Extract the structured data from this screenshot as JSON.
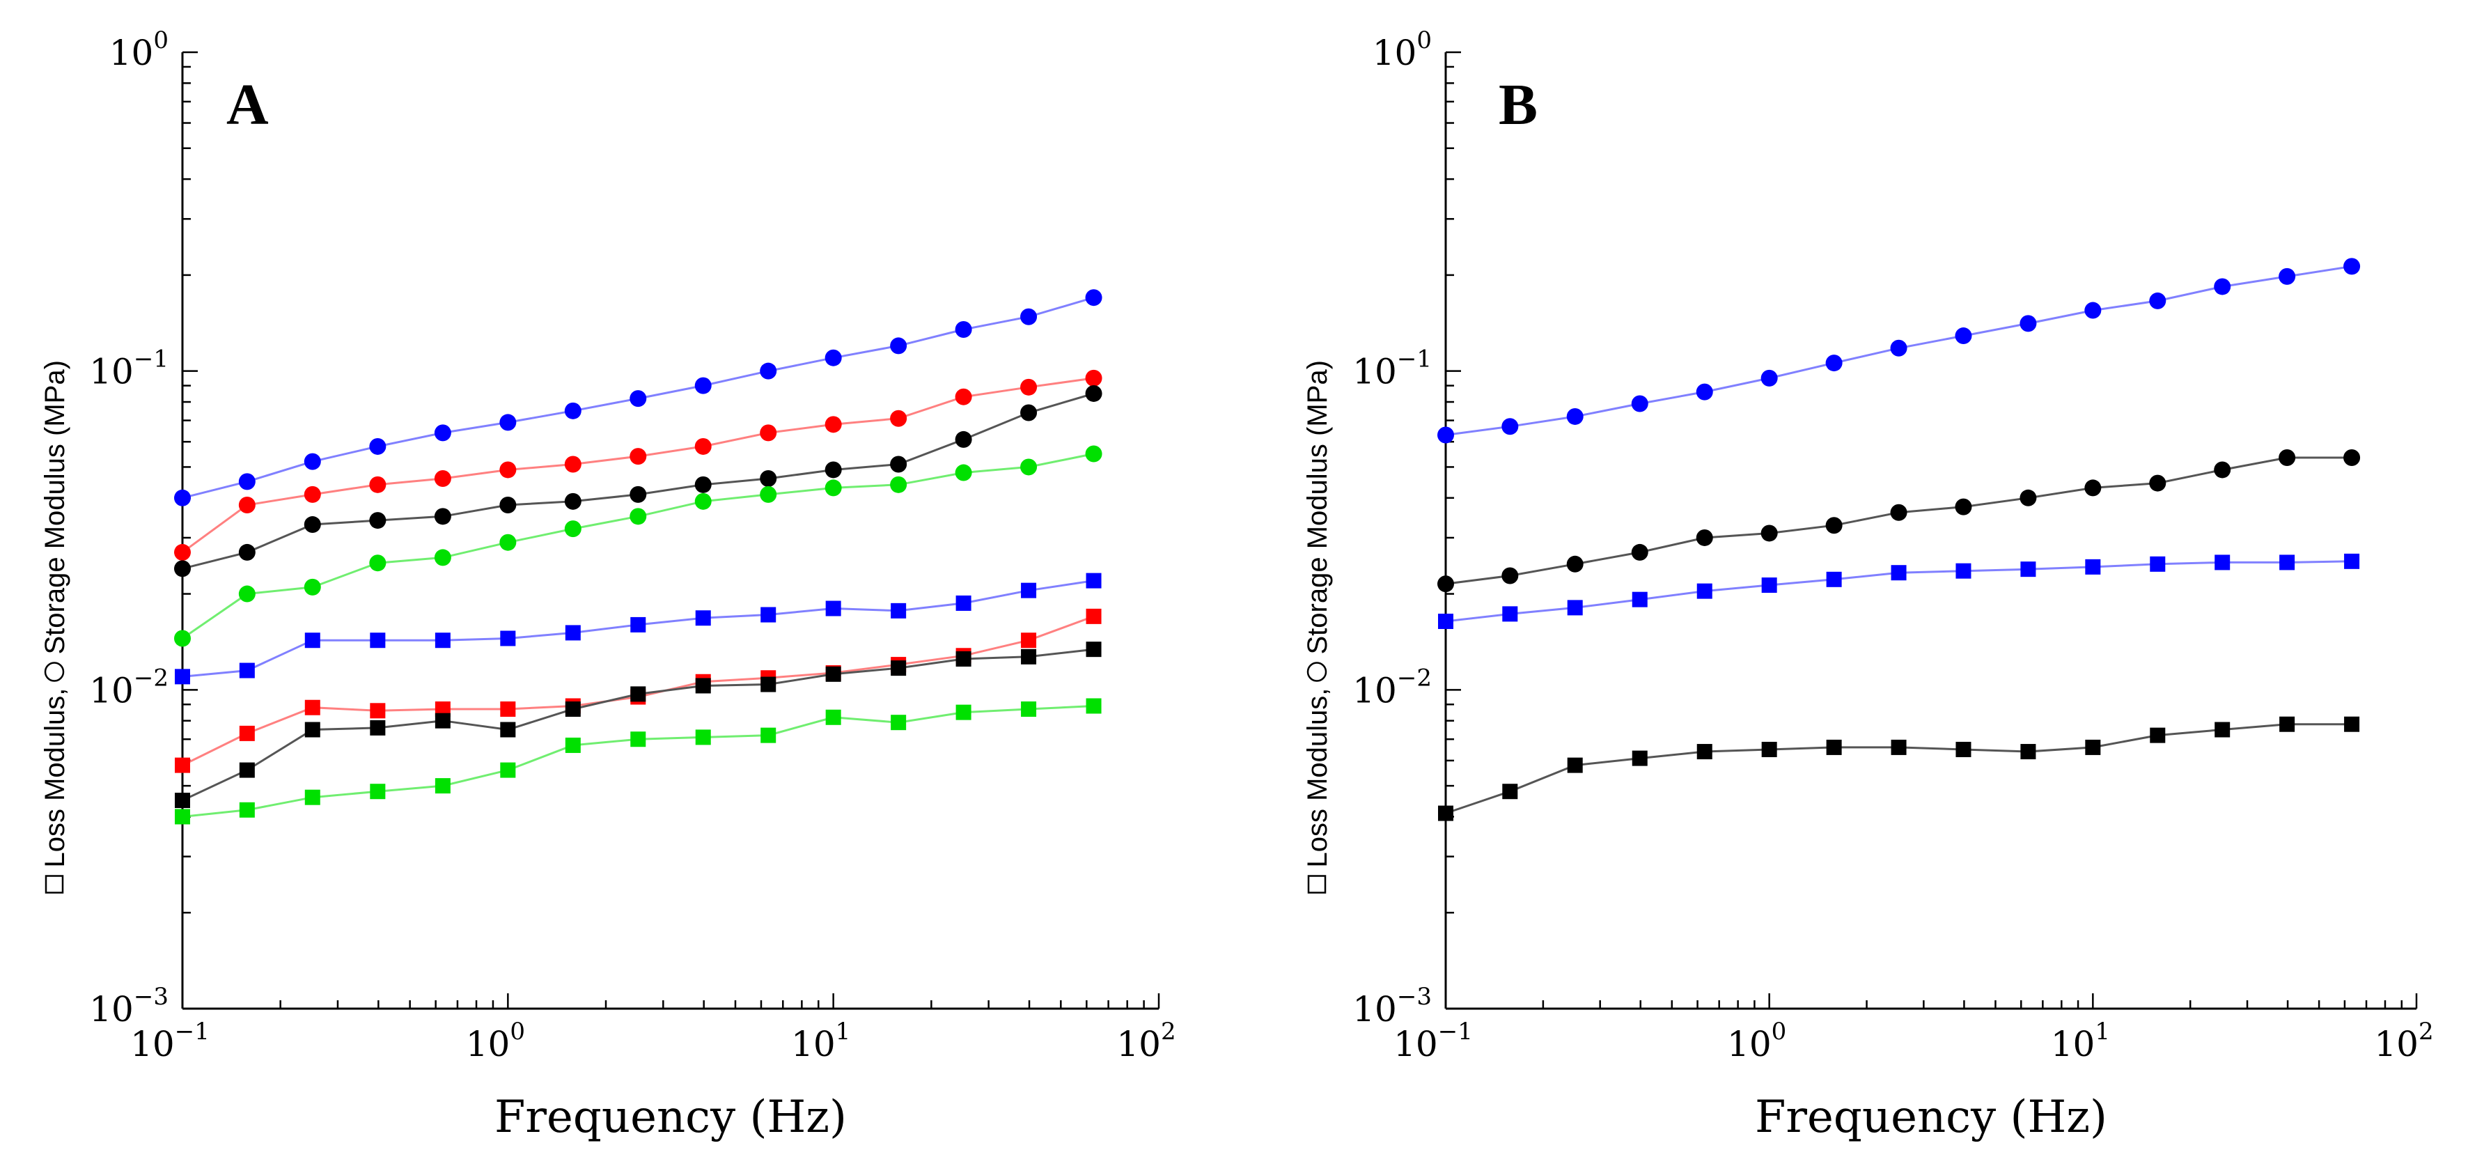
{
  "chart_data": [
    {
      "type": "line",
      "panel": "A",
      "xscale": "log",
      "yscale": "log",
      "xlim": [
        0.1,
        100
      ],
      "ylim": [
        0.001,
        1
      ],
      "xlabel": "Frequency (Hz)",
      "ylabel": "Loss Modulus, Storage Modulus (MPa)",
      "ylabel_loss_part": "Loss Modulus,",
      "ylabel_storage_part": "Storage Modulus (MPa)",
      "xticks": [
        {
          "base": "10",
          "exp": "−1"
        },
        {
          "base": "10",
          "exp": "0"
        },
        {
          "base": "10",
          "exp": "1"
        },
        {
          "base": "10",
          "exp": "2"
        }
      ],
      "yticks": [
        {
          "base": "10",
          "exp": "−3"
        },
        {
          "base": "10",
          "exp": "−2"
        },
        {
          "base": "10",
          "exp": "−1"
        },
        {
          "base": "10",
          "exp": "0"
        }
      ],
      "x": [
        0.1,
        0.158,
        0.251,
        0.398,
        0.631,
        1.0,
        1.585,
        2.512,
        3.981,
        6.31,
        10.0,
        15.85,
        25.12,
        39.81,
        63.1
      ],
      "series": [
        {
          "name": "blue storage",
          "marker": "circle",
          "color": "#0000ff",
          "line_color": "#8080ff",
          "values": [
            0.04,
            0.045,
            0.052,
            0.058,
            0.064,
            0.069,
            0.075,
            0.082,
            0.09,
            0.1,
            0.11,
            0.12,
            0.135,
            0.148,
            0.17
          ]
        },
        {
          "name": "red storage",
          "marker": "circle",
          "color": "#ff0000",
          "line_color": "#ff8080",
          "values": [
            0.027,
            0.038,
            0.041,
            0.044,
            0.046,
            0.049,
            0.051,
            0.054,
            0.058,
            0.064,
            0.068,
            0.071,
            0.083,
            0.089,
            0.095
          ]
        },
        {
          "name": "black storage",
          "marker": "circle",
          "color": "#000000",
          "line_color": "#555555",
          "values": [
            0.024,
            0.027,
            0.033,
            0.034,
            0.035,
            0.038,
            0.039,
            0.041,
            0.044,
            0.046,
            0.049,
            0.051,
            0.061,
            0.074,
            0.085
          ]
        },
        {
          "name": "green storage",
          "marker": "circle",
          "color": "#00e000",
          "line_color": "#70ee70",
          "values": [
            0.0145,
            0.02,
            0.021,
            0.025,
            0.026,
            0.029,
            0.032,
            0.035,
            0.039,
            0.041,
            0.043,
            0.044,
            0.048,
            0.05,
            0.055
          ]
        },
        {
          "name": "blue loss",
          "marker": "square",
          "color": "#0000ff",
          "line_color": "#8080ff",
          "values": [
            0.011,
            0.0115,
            0.0143,
            0.0143,
            0.0143,
            0.0145,
            0.0151,
            0.016,
            0.0168,
            0.0172,
            0.018,
            0.0177,
            0.0187,
            0.0205,
            0.022
          ]
        },
        {
          "name": "red loss",
          "marker": "square",
          "color": "#ff0000",
          "line_color": "#ff8080",
          "values": [
            0.0058,
            0.0073,
            0.0088,
            0.0086,
            0.0087,
            0.0087,
            0.0089,
            0.0095,
            0.0106,
            0.0109,
            0.0113,
            0.012,
            0.0128,
            0.0143,
            0.017
          ]
        },
        {
          "name": "black loss",
          "marker": "square",
          "color": "#000000",
          "line_color": "#555555",
          "values": [
            0.0045,
            0.0056,
            0.0075,
            0.0076,
            0.008,
            0.0075,
            0.0087,
            0.0097,
            0.0103,
            0.0104,
            0.0112,
            0.0117,
            0.0125,
            0.0127,
            0.0134
          ]
        },
        {
          "name": "green loss",
          "marker": "square",
          "color": "#00e000",
          "line_color": "#70ee70",
          "values": [
            0.004,
            0.0042,
            0.0046,
            0.0048,
            0.005,
            0.0056,
            0.0067,
            0.007,
            0.0071,
            0.0072,
            0.0082,
            0.0079,
            0.0085,
            0.0087,
            0.0089
          ]
        }
      ]
    },
    {
      "type": "line",
      "panel": "B",
      "xscale": "log",
      "yscale": "log",
      "xlim": [
        0.1,
        100
      ],
      "ylim": [
        0.001,
        1
      ],
      "xlabel": "Frequency (Hz)",
      "ylabel": "Loss Modulus, Storage Modulus (MPa)",
      "ylabel_loss_part": "Loss Modulus,",
      "ylabel_storage_part": "Storage Modulus (MPa)",
      "xticks": [
        {
          "base": "10",
          "exp": "−1"
        },
        {
          "base": "10",
          "exp": "0"
        },
        {
          "base": "10",
          "exp": "1"
        },
        {
          "base": "10",
          "exp": "2"
        }
      ],
      "yticks": [
        {
          "base": "10",
          "exp": "−3"
        },
        {
          "base": "10",
          "exp": "−2"
        },
        {
          "base": "10",
          "exp": "−1"
        },
        {
          "base": "10",
          "exp": "0"
        }
      ],
      "x": [
        0.1,
        0.158,
        0.251,
        0.398,
        0.631,
        1.0,
        1.585,
        2.512,
        3.981,
        6.31,
        10.0,
        15.85,
        25.12,
        39.81,
        63.1
      ],
      "series": [
        {
          "name": "blue storage",
          "marker": "circle",
          "color": "#0000ff",
          "line_color": "#8080ff",
          "values": [
            0.063,
            0.067,
            0.072,
            0.079,
            0.086,
            0.095,
            0.106,
            0.118,
            0.129,
            0.141,
            0.155,
            0.166,
            0.184,
            0.198,
            0.213
          ]
        },
        {
          "name": "black storage",
          "marker": "circle",
          "color": "#000000",
          "line_color": "#555555",
          "values": [
            0.0215,
            0.0228,
            0.0248,
            0.027,
            0.03,
            0.031,
            0.0328,
            0.036,
            0.0375,
            0.04,
            0.043,
            0.0445,
            0.049,
            0.0535,
            0.0535
          ]
        },
        {
          "name": "blue loss",
          "marker": "square",
          "color": "#0000ff",
          "line_color": "#8080ff",
          "values": [
            0.0164,
            0.0173,
            0.0181,
            0.0192,
            0.0204,
            0.0213,
            0.0222,
            0.0233,
            0.0236,
            0.0239,
            0.0243,
            0.0248,
            0.0251,
            0.0251,
            0.0253
          ]
        },
        {
          "name": "black loss",
          "marker": "square",
          "color": "#000000",
          "line_color": "#555555",
          "values": [
            0.0041,
            0.0048,
            0.0058,
            0.0061,
            0.0064,
            0.0065,
            0.0066,
            0.0066,
            0.0065,
            0.0064,
            0.0066,
            0.0072,
            0.0075,
            0.0078,
            0.0078
          ]
        }
      ]
    }
  ]
}
